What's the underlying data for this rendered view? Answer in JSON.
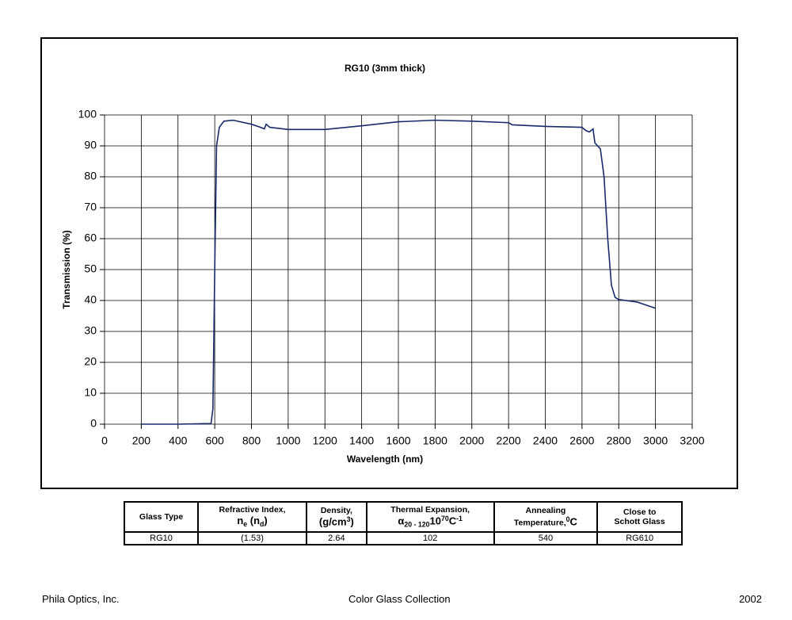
{
  "chart_data": {
    "type": "line",
    "title": "RG10 (3mm thick)",
    "x_label": "Wavelength (nm)",
    "y_label": "Transmission (%)",
    "x": [
      200,
      400,
      580,
      590,
      600,
      610,
      625,
      650,
      700,
      800,
      850,
      870,
      880,
      900,
      1000,
      1200,
      1400,
      1600,
      1800,
      2000,
      2200,
      2220,
      2400,
      2600,
      2620,
      2640,
      2660,
      2670,
      2700,
      2720,
      2740,
      2760,
      2780,
      2800,
      2900,
      3000
    ],
    "values": [
      0,
      0,
      0.2,
      5,
      50,
      90,
      96,
      98,
      98.3,
      97,
      96,
      95.5,
      97,
      96,
      95.3,
      95.3,
      96.5,
      97.8,
      98.3,
      98,
      97.5,
      96.8,
      96.3,
      96,
      95,
      94.5,
      95.5,
      91,
      89,
      80,
      60,
      45,
      41,
      40.3,
      39.5,
      37.5
    ],
    "color": "#1a2a6c",
    "xlim": [
      0,
      3200
    ],
    "xticks": [
      0,
      200,
      400,
      600,
      800,
      1000,
      1200,
      1400,
      1600,
      1800,
      2000,
      2200,
      2400,
      2600,
      2800,
      3000,
      3200
    ],
    "ylim": [
      0,
      100
    ],
    "yticks": [
      0,
      10,
      20,
      30,
      40,
      50,
      60,
      70,
      80,
      90,
      100
    ],
    "grid": true
  },
  "table": {
    "header": [
      [
        "Glass Type"
      ],
      [
        "Refractive Index,",
        "n",
        "e",
        " (n",
        "d",
        ")"
      ],
      [
        "Density,",
        "(g/cm",
        "3",
        ")"
      ],
      [
        "Thermal Expansion,",
        "α",
        "20 - 120",
        "10",
        "7",
        "0",
        "C",
        "-1"
      ],
      [
        "Annealing",
        "Temperature,",
        "0",
        "C"
      ],
      [
        "Close to",
        "Schott Glass"
      ]
    ],
    "rows": [
      [
        "RG10",
        "(1.53)",
        "2.64",
        "102",
        "540",
        "RG610"
      ]
    ]
  },
  "footer": {
    "left": "Phila Optics, Inc.",
    "center": "Color Glass Collection",
    "right": "2002"
  }
}
